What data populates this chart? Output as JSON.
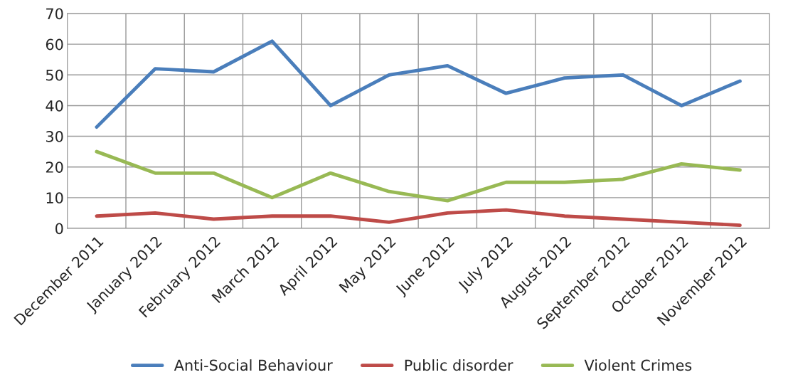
{
  "chart_data": {
    "type": "line",
    "categories": [
      "December 2011",
      "January 2012",
      "February 2012",
      "March 2012",
      "April 2012",
      "May 2012",
      "June 2012",
      "July 2012",
      "August 2012",
      "September 2012",
      "October 2012",
      "November 2012"
    ],
    "series": [
      {
        "name": "Anti-Social Behaviour",
        "color": "#4a7ebb",
        "values": [
          33,
          52,
          51,
          61,
          40,
          50,
          53,
          44,
          49,
          50,
          40,
          48
        ]
      },
      {
        "name": "Public disorder",
        "color": "#be4b48",
        "values": [
          4,
          5,
          3,
          4,
          4,
          2,
          5,
          6,
          4,
          3,
          2,
          1
        ]
      },
      {
        "name": "Violent Crimes",
        "color": "#98b954",
        "values": [
          25,
          18,
          18,
          10,
          18,
          12,
          9,
          15,
          15,
          16,
          21,
          19
        ]
      }
    ],
    "ylim": [
      0,
      70
    ],
    "yticks": [
      0,
      10,
      20,
      30,
      40,
      50,
      60,
      70
    ],
    "grid": true,
    "legend": "bottom",
    "marker": "none",
    "line_style": "solid"
  }
}
